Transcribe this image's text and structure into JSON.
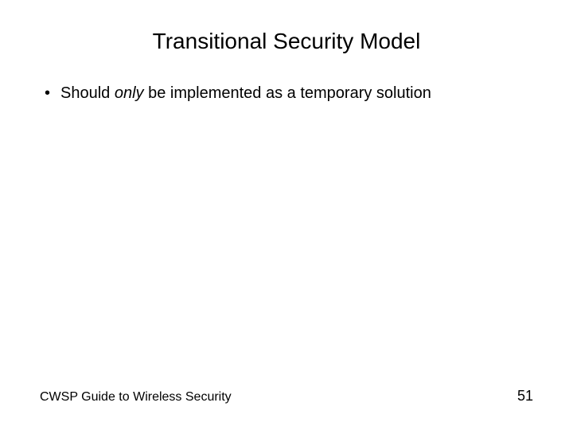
{
  "slide": {
    "title": "Transitional Security Model",
    "bullets": [
      {
        "prefix": "Should ",
        "emphasis": "only",
        "suffix": " be implemented as a temporary solution"
      }
    ],
    "footer": {
      "text": "CWSP Guide to Wireless Security",
      "page_number": "51"
    }
  },
  "colors": {
    "background": "#ffffff",
    "text": "#000000"
  },
  "typography": {
    "font_family": "Arial",
    "title_fontsize": 28,
    "bullet_fontsize": 20,
    "footer_fontsize": 16,
    "page_number_fontsize": 18
  }
}
